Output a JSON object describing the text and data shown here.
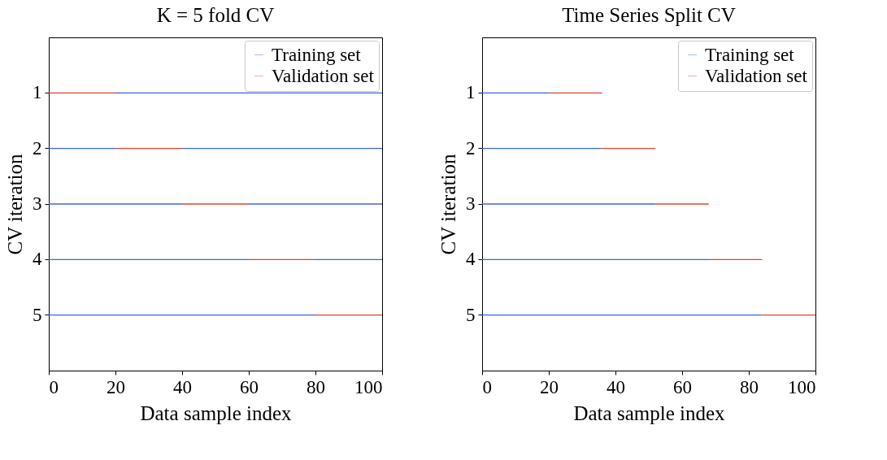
{
  "chart_data": [
    {
      "type": "bar",
      "orientation": "horizontal",
      "stacked": true,
      "title": "K = 5 fold CV",
      "xlabel": "Data sample index",
      "ylabel": "CV iteration",
      "categories": [
        "1",
        "2",
        "3",
        "4",
        "5"
      ],
      "xlim": [
        0,
        100
      ],
      "xticks": [
        0,
        20,
        40,
        60,
        80,
        100
      ],
      "legend": "top right",
      "grid": false,
      "series": [
        {
          "name": "Training set",
          "color": "#3c64e6",
          "values": [
            0,
            20,
            40,
            60,
            80
          ]
        },
        {
          "name": "Validation set",
          "color": "#dc4630",
          "values": [
            20,
            20,
            20,
            20,
            20
          ]
        },
        {
          "color": "#3c64e6",
          "values": [
            80,
            60,
            40,
            20,
            0
          ]
        }
      ]
    },
    {
      "type": "bar",
      "orientation": "horizontal",
      "stacked": true,
      "title": "Time Series Split CV",
      "xlabel": "Data sample index",
      "ylabel": "CV iteration",
      "categories": [
        "1",
        "2",
        "3",
        "4",
        "5"
      ],
      "xlim": [
        0,
        100
      ],
      "xticks": [
        0,
        20,
        40,
        60,
        80,
        100
      ],
      "legend": "top right",
      "grid": false,
      "series": [
        {
          "name": "Training set",
          "color": "#3c64e6",
          "values": [
            20,
            36,
            52,
            68,
            84
          ]
        },
        {
          "name": "Validation set",
          "color": "#dc4630",
          "values": [
            16,
            16,
            16,
            16,
            16
          ]
        }
      ]
    }
  ]
}
